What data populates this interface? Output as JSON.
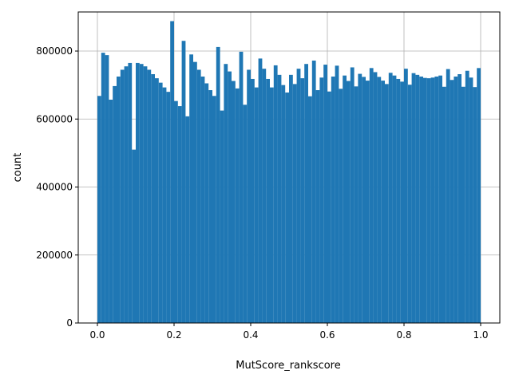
{
  "chart_data": {
    "type": "bar",
    "xlabel": "MutScore_rankscore",
    "ylabel": "count",
    "xlim": [
      -0.05,
      1.05
    ],
    "ylim": [
      0,
      915000
    ],
    "grid": true,
    "bar_color": "#1f77b4",
    "grid_color": "#b0b0b0",
    "bin_start": 0.0,
    "bin_width": 0.01,
    "x_ticks": [
      0.0,
      0.2,
      0.4,
      0.6,
      0.8,
      1.0
    ],
    "x_tick_labels": [
      "0.0",
      "0.2",
      "0.4",
      "0.6",
      "0.8",
      "1.0"
    ],
    "y_ticks": [
      0,
      200000,
      400000,
      600000,
      800000
    ],
    "y_tick_labels": [
      "0",
      "200000",
      "400000",
      "600000",
      "800000"
    ],
    "values": [
      668000,
      795000,
      788000,
      657000,
      697000,
      725000,
      745000,
      755000,
      765000,
      510000,
      765000,
      762000,
      755000,
      745000,
      732000,
      720000,
      707000,
      693000,
      680000,
      888000,
      653000,
      638000,
      830000,
      608000,
      790000,
      768000,
      745000,
      725000,
      705000,
      685000,
      668000,
      812000,
      625000,
      762000,
      740000,
      712000,
      690000,
      798000,
      642000,
      745000,
      718000,
      693000,
      778000,
      748000,
      718000,
      693000,
      758000,
      730000,
      700000,
      678000,
      730000,
      703000,
      748000,
      720000,
      762000,
      667000,
      772000,
      685000,
      722000,
      760000,
      681000,
      725000,
      757000,
      689000,
      728000,
      712000,
      752000,
      696000,
      733000,
      724000,
      713000,
      750000,
      738000,
      724000,
      713000,
      703000,
      736000,
      728000,
      718000,
      710000,
      748000,
      701000,
      735000,
      730000,
      725000,
      721000,
      720000,
      722000,
      725000,
      728000,
      695000,
      747000,
      715000,
      725000,
      732000,
      695000,
      742000,
      722000,
      694000,
      750000
    ]
  }
}
